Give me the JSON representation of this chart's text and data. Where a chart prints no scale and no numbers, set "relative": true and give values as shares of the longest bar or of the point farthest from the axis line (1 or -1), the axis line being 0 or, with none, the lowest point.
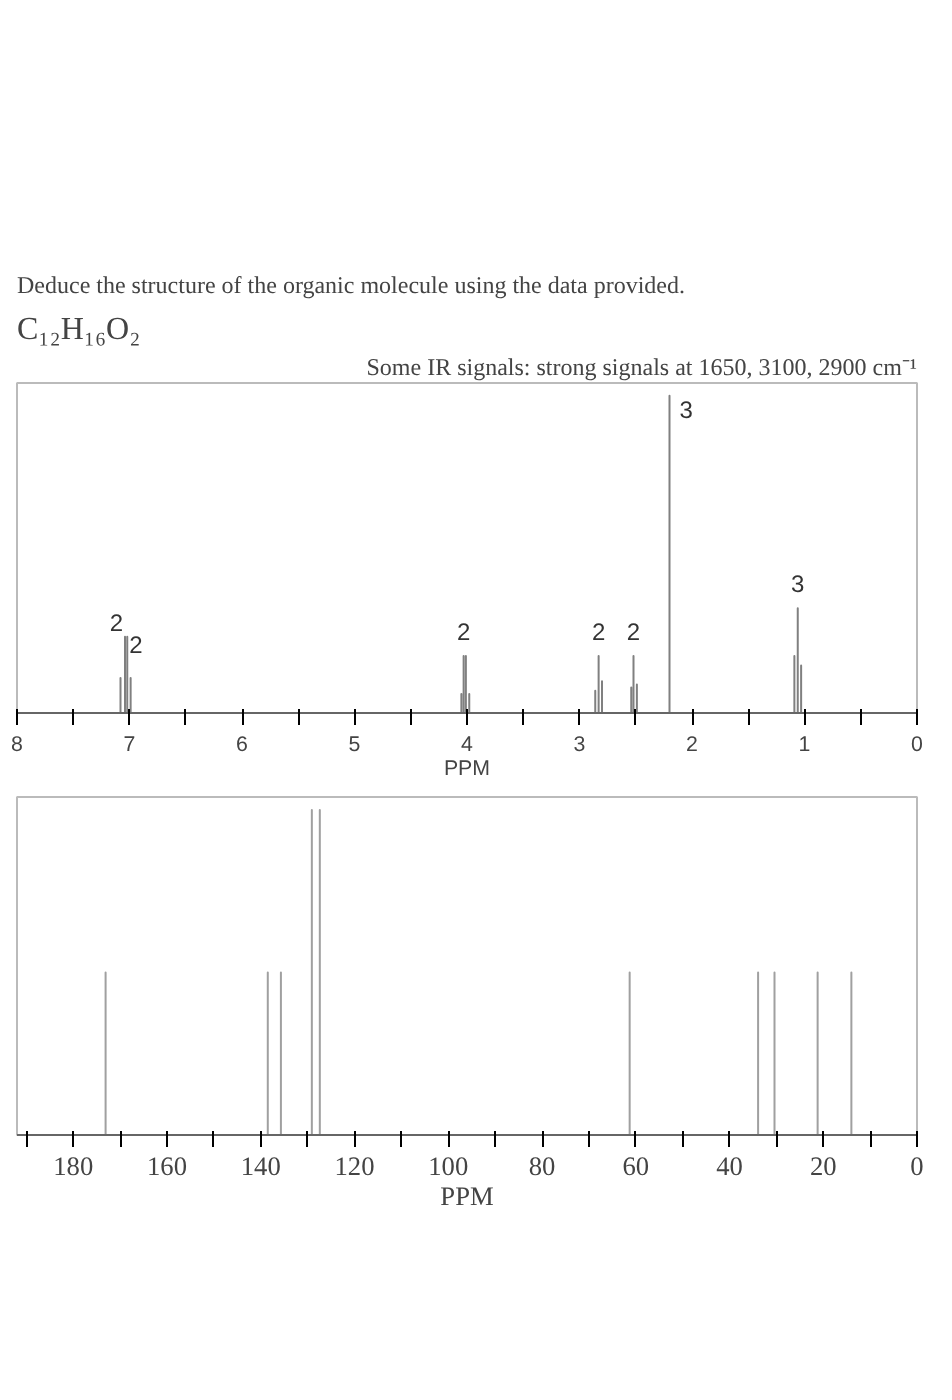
{
  "chart_data": [
    {
      "type": "line",
      "title": "Deduce the structure of the organic molecule using the data provided.",
      "subtitle": "C₁₂H₁₆O₂",
      "xlabel": "PPM",
      "relative": true,
      "tick_labels": "x",
      "grid": false,
      "annotations": [
        "Some IR signals: strong signals at 1650, 3100, 2900 cm⁻¹",
        {
          "text": "2",
          "x": 7.04,
          "y": 0.24
        },
        {
          "text": "2",
          "x": 7.02,
          "y": 0.24
        },
        {
          "text": "2",
          "x": 4.03,
          "y": 0.18
        },
        {
          "text": "2",
          "x": 2.83,
          "y": 0.18
        },
        {
          "text": "2",
          "x": 2.52,
          "y": 0.18
        },
        {
          "text": "3",
          "x": 2.2,
          "y": 1
        },
        {
          "text": "3",
          "x": 1.06,
          "y": 0.33
        }
      ],
      "xlim": [
        8,
        0
      ],
      "xticks": [
        8,
        {
          "value": 7.5,
          "label": null
        },
        7,
        {
          "value": 6.5,
          "label": null
        },
        6,
        {
          "value": 5.5,
          "label": null
        },
        5,
        {
          "value": 4.5,
          "label": null
        },
        4,
        {
          "value": 3.5,
          "label": null
        },
        3,
        {
          "value": 2.5,
          "label": null
        },
        2,
        {
          "value": 1.5,
          "label": null
        },
        1,
        {
          "value": 0.5,
          "label": null
        },
        0
      ],
      "series": [
        {
          "color": "#808080",
          "x": [
            8,
            7.08,
            7.08,
            7.08,
            7.04,
            7.04,
            7.04,
            7.02,
            7.02,
            7.02,
            6.99,
            6.99,
            6.99,
            4.05,
            4.05,
            4.05,
            4.03,
            4.03,
            4.03,
            4.01,
            4.01,
            4.01,
            3.98,
            3.98,
            3.98,
            2.86,
            2.86,
            2.86,
            2.83,
            2.83,
            2.83,
            2.8,
            2.8,
            2.8,
            2.54,
            2.54,
            2.54,
            2.52,
            2.52,
            2.52,
            2.49,
            2.49,
            2.49,
            2.2,
            2.2,
            2.2,
            1.09,
            1.09,
            1.09,
            1.06,
            1.06,
            1.06,
            1.03,
            1.03,
            1.03,
            0
          ],
          "values": [
            0,
            0,
            0.11,
            0,
            0,
            0.24,
            0,
            0,
            0.24,
            0,
            0,
            0.11,
            0,
            0,
            0.06,
            0,
            0,
            0.18,
            0,
            0,
            0.18,
            0,
            0,
            0.06,
            0,
            0,
            0.07,
            0,
            0,
            0.18,
            0,
            0,
            0.1,
            0,
            0,
            0.08,
            0,
            0,
            0.18,
            0,
            0,
            0.09,
            0,
            0,
            1,
            0,
            0,
            0.18,
            0,
            0,
            0.33,
            0,
            0,
            0.15,
            0,
            0
          ]
        }
      ]
    },
    {
      "type": "line",
      "xlabel": "PPM",
      "relative": true,
      "tick_labels": "x",
      "grid": false,
      "xlim": [
        192,
        0
      ],
      "xticks": [
        {
          "value": 190,
          "label": null
        },
        180,
        {
          "value": 170,
          "label": null
        },
        160,
        {
          "value": 150,
          "label": null
        },
        140,
        {
          "value": 130,
          "label": null
        },
        120,
        {
          "value": 110,
          "label": null
        },
        100,
        {
          "value": 90,
          "label": null
        },
        80,
        {
          "value": 70,
          "label": null
        },
        60,
        {
          "value": 50,
          "label": null
        },
        40,
        {
          "value": 30,
          "label": null
        },
        20,
        {
          "value": 10,
          "label": null
        },
        0
      ],
      "series": [
        {
          "color": "#a0a0a0",
          "x": [
            192,
            173.1,
            173.1,
            173.1,
            138.5,
            138.5,
            138.5,
            135.7,
            135.7,
            135.7,
            129.1,
            129.1,
            129.1,
            127.4,
            127.4,
            127.4,
            61.3,
            61.3,
            61.3,
            33.9,
            33.9,
            33.9,
            30.4,
            30.4,
            30.4,
            21.2,
            21.2,
            21.2,
            14.0,
            14.0,
            14.0,
            0
          ],
          "values": [
            0,
            0,
            0.5,
            0,
            0,
            0.5,
            0,
            0,
            0.5,
            0,
            0,
            1,
            0,
            0,
            1,
            0,
            0,
            0.5,
            0,
            0,
            0.5,
            0,
            0,
            0.5,
            0,
            0,
            0.5,
            0,
            0,
            0.5,
            0,
            0
          ]
        }
      ]
    }
  ]
}
